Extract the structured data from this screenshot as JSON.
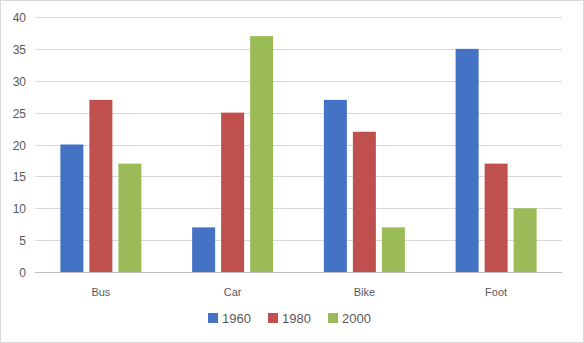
{
  "chart_data": {
    "type": "bar",
    "categories": [
      "Bus",
      "Car",
      "Bike",
      "Foot"
    ],
    "series": [
      {
        "name": "1960",
        "color": "#4472c4",
        "values": [
          20,
          7,
          27,
          35
        ]
      },
      {
        "name": "1980",
        "color": "#c0504d",
        "values": [
          27,
          25,
          22,
          17
        ]
      },
      {
        "name": "2000",
        "color": "#9bbb59",
        "values": [
          17,
          37,
          7,
          10
        ]
      }
    ],
    "ylim": [
      0,
      40
    ],
    "yticks": [
      0,
      5,
      10,
      15,
      20,
      25,
      30,
      35,
      40
    ],
    "grid": true,
    "legend": "bottom"
  }
}
